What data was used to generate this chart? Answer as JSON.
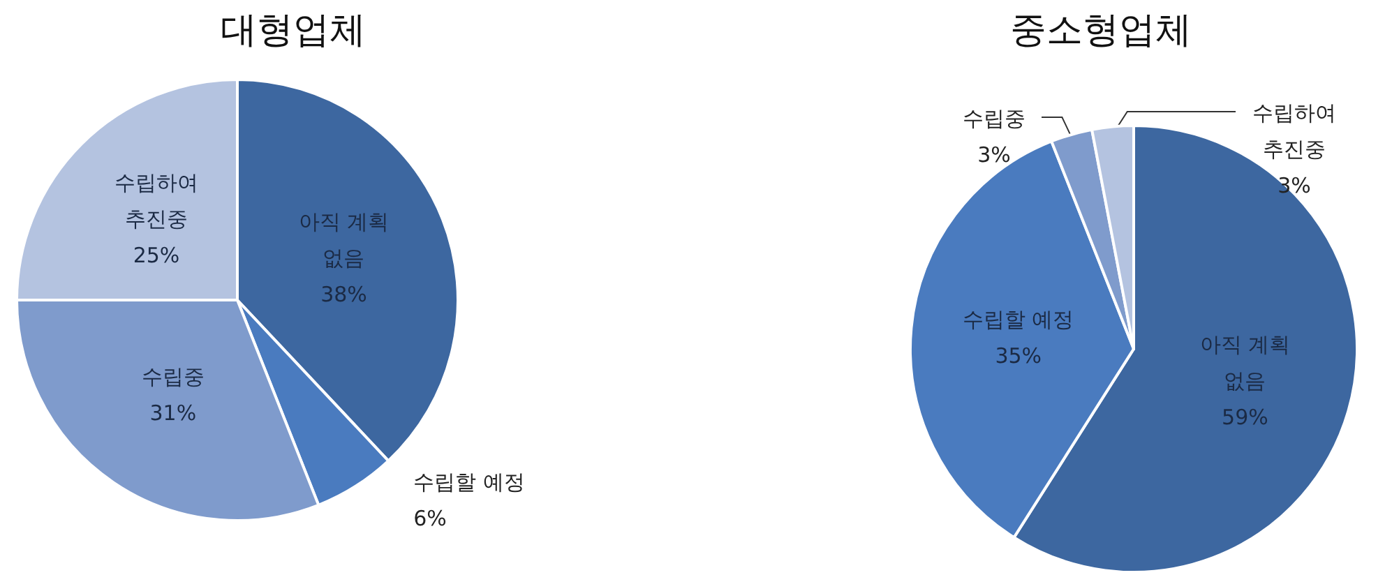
{
  "chart_data": [
    {
      "type": "pie",
      "title": "대형업체",
      "categories": [
        "아직 계획\n없음",
        "수립할 예정",
        "수립중",
        "수립하여\n추진중"
      ],
      "values": [
        38,
        6,
        31,
        25
      ],
      "value_labels": [
        "38%",
        "6%",
        "31%",
        "25%"
      ],
      "colors": [
        "#3d67a0",
        "#4a7bbf",
        "#7f9bcc",
        "#b4c3e0"
      ],
      "legend": false
    },
    {
      "type": "pie",
      "title": "중소형업체",
      "categories": [
        "아직 계획\n없음",
        "수립할 예정",
        "수립중",
        "수립하여\n추진중"
      ],
      "values": [
        59,
        35,
        3,
        3
      ],
      "value_labels": [
        "59%",
        "35%",
        "3%",
        "3%"
      ],
      "colors": [
        "#3d67a0",
        "#4a7bbf",
        "#7f9bcc",
        "#b4c3e0"
      ],
      "legend": false
    }
  ]
}
